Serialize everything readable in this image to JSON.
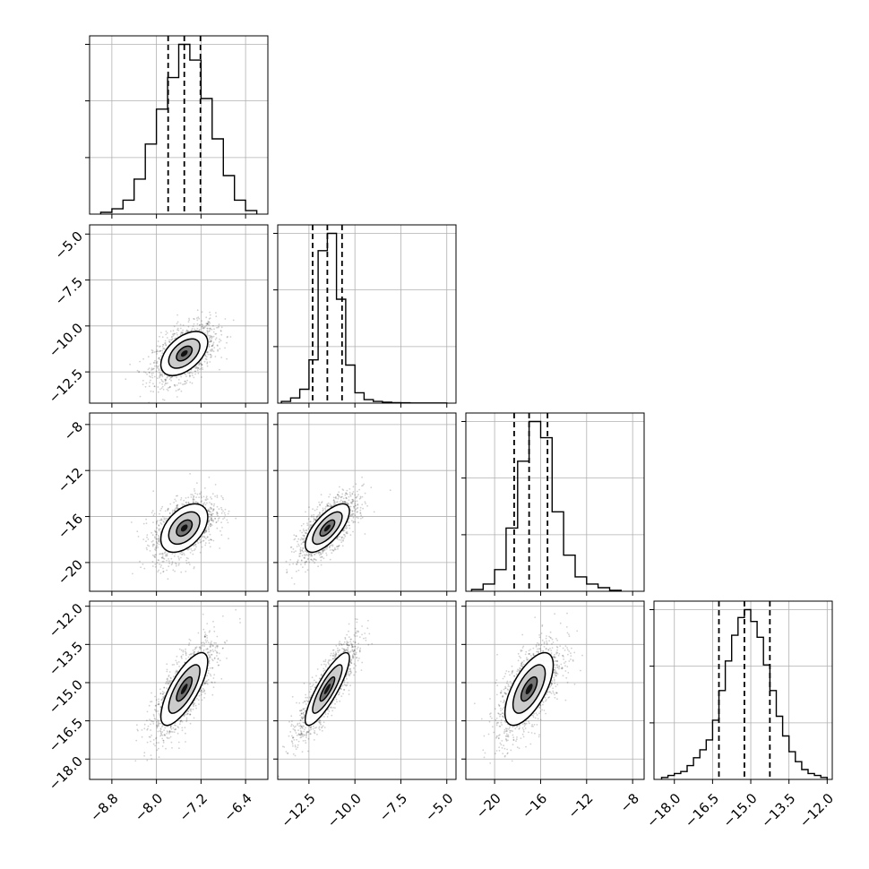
{
  "chart_data": {
    "type": "corner",
    "title": "",
    "grid": true,
    "params": [
      {
        "range": [
          -9.2,
          -6.0
        ],
        "ticks": [
          -8.8,
          -8.0,
          -7.2,
          -6.4
        ],
        "tick_labels": [
          "−8.8",
          "−8.0",
          "−7.2",
          "−6.4"
        ],
        "quantiles": [
          -7.79,
          -7.5,
          -7.21
        ],
        "median": -7.5,
        "sigma": 0.28
      },
      {
        "range": [
          -14.2,
          -4.5
        ],
        "ticks": [
          -12.5,
          -10.0,
          -7.5,
          -5.0
        ],
        "tick_labels": [
          "−12.5",
          "−10.0",
          "−7.5",
          "−5.0"
        ],
        "quantiles": [
          -12.3,
          -11.5,
          -10.7
        ],
        "median": -11.5,
        "sigma": 0.8
      },
      {
        "range": [
          -22.5,
          -7.0
        ],
        "ticks": [
          -20,
          -16,
          -12,
          -8
        ],
        "tick_labels": [
          "−20",
          "−16",
          "−12",
          "−8"
        ],
        "quantiles": [
          -18.3,
          -17.0,
          -15.4
        ],
        "median": -17.0,
        "sigma": 1.4
      },
      {
        "range": [
          -18.8,
          -11.8
        ],
        "ticks": [
          -18.0,
          -16.5,
          -15.0,
          -13.5,
          -12.0
        ],
        "tick_labels": [
          "−18.0",
          "−16.5",
          "−15.0",
          "−13.5",
          "−12.0"
        ],
        "quantiles": [
          -16.25,
          -15.25,
          -14.25
        ],
        "median": -15.25,
        "sigma": 0.95
      }
    ],
    "histograms": [
      {
        "param": 0,
        "bin_edges": [
          -9.0,
          -8.8,
          -8.6,
          -8.4,
          -8.2,
          -8.0,
          -7.8,
          -7.6,
          -7.4,
          -7.2,
          -7.0,
          -6.8,
          -6.6,
          -6.4,
          -6.2
        ],
        "counts": [
          1,
          3,
          8,
          20,
          40,
          60,
          78,
          97,
          88,
          66,
          43,
          22,
          8,
          2
        ]
      },
      {
        "param": 1,
        "bin_edges": [
          -14.0,
          -13.5,
          -13.0,
          -12.5,
          -12.0,
          -11.5,
          -11.0,
          -10.5,
          -10.0,
          -9.5,
          -9.0,
          -8.5,
          -8.0,
          -7.5,
          -7.0,
          -6.5,
          -6.0,
          -5.5,
          -5.0
        ],
        "counts": [
          1,
          3,
          8,
          25,
          88,
          98,
          60,
          22,
          6,
          2,
          1,
          0.5,
          0.3,
          0.2,
          0.1,
          0.1,
          0.1,
          0.1
        ]
      },
      {
        "param": 2,
        "bin_edges": [
          -22.0,
          -21.0,
          -20.0,
          -19.0,
          -18.0,
          -17.0,
          -16.0,
          -15.0,
          -14.0,
          -13.0,
          -12.0,
          -11.0,
          -10.0,
          -9.0
        ],
        "counts": [
          1,
          4,
          12,
          35,
          72,
          94,
          85,
          44,
          20,
          8,
          4,
          2,
          0.5
        ]
      },
      {
        "param": 3,
        "bin_edges": [
          -18.5,
          -18.25,
          -18.0,
          -17.75,
          -17.5,
          -17.25,
          -17.0,
          -16.75,
          -16.5,
          -16.25,
          -16.0,
          -15.75,
          -15.5,
          -15.25,
          -15.0,
          -14.75,
          -14.5,
          -14.25,
          -14.0,
          -13.75,
          -13.5,
          -13.25,
          -13.0,
          -12.75,
          -12.5,
          -12.25,
          -12.0
        ],
        "counts": [
          1,
          2,
          3,
          4,
          7,
          11,
          15,
          20,
          30,
          45,
          60,
          73,
          82,
          86,
          80,
          72,
          58,
          45,
          32,
          22,
          14,
          9,
          5,
          3,
          2,
          1
        ]
      }
    ],
    "correlations": [
      {
        "x": 0,
        "y": 1,
        "r": 0.5
      },
      {
        "x": 0,
        "y": 2,
        "r": 0.45
      },
      {
        "x": 1,
        "y": 2,
        "r": 0.7
      },
      {
        "x": 0,
        "y": 3,
        "r": 0.75
      },
      {
        "x": 1,
        "y": 3,
        "r": 0.85
      },
      {
        "x": 2,
        "y": 3,
        "r": 0.65
      }
    ],
    "contour_levels_sigma": [
      0.5,
      1.0,
      1.5
    ],
    "line_color": "#000000",
    "point_color": "#000000",
    "grid_color": "#b0b0b0",
    "quantile_style": "dashed"
  }
}
